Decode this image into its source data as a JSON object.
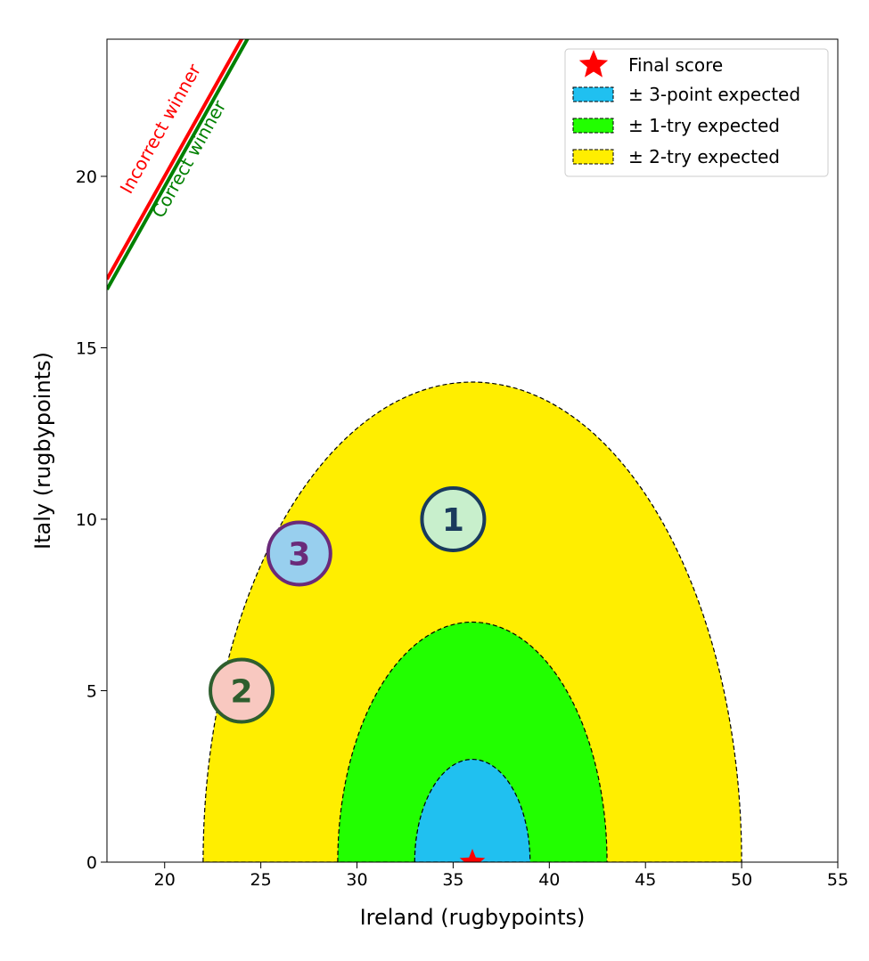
{
  "chart_data": {
    "type": "scatter",
    "xlabel": "Ireland (rugbypoints)",
    "ylabel": "Italy (rugbypoints)",
    "xlim": [
      17,
      55
    ],
    "ylim": [
      0,
      24
    ],
    "x_ticks": [
      20,
      25,
      30,
      35,
      40,
      45,
      50,
      55
    ],
    "y_ticks": [
      0,
      5,
      10,
      15,
      20
    ],
    "grid": false,
    "legend_position": "top-right",
    "final_score": {
      "label": "Final score",
      "x": 36,
      "y": 0,
      "color": "#ff0000"
    },
    "regions": [
      {
        "label": "± 2-try expected",
        "center": [
          36,
          0
        ],
        "x_radius": 14,
        "y_radius": 14,
        "color": "#ffee00"
      },
      {
        "label": "± 1-try expected",
        "center": [
          36,
          0
        ],
        "x_radius": 7,
        "y_radius": 7,
        "color": "#22ff00"
      },
      {
        "label": "± 3-point expected",
        "center": [
          36,
          0
        ],
        "x_radius": 3,
        "y_radius": 3,
        "color": "#20c0f0"
      }
    ],
    "legend": [
      {
        "label": "Final score",
        "kind": "star",
        "color": "#ff0000"
      },
      {
        "label": "± 3-point expected",
        "kind": "patch",
        "color": "#20c0f0"
      },
      {
        "label": "± 1-try expected",
        "kind": "patch",
        "color": "#22ff00"
      },
      {
        "label": "± 2-try expected",
        "kind": "patch",
        "color": "#ffee00"
      }
    ],
    "lines": [
      {
        "label": "Incorrect winner",
        "color": "#ff0000",
        "intercept": 0
      },
      {
        "label": "Correct winner",
        "color": "#008000",
        "intercept": -0.3
      }
    ],
    "predictions": [
      {
        "label": "1",
        "x": 35,
        "y": 10,
        "fill": "#c8efcc",
        "edge": "#1a3a5c"
      },
      {
        "label": "2",
        "x": 24,
        "y": 5,
        "fill": "#f8c8c0",
        "edge": "#2e5e2e"
      },
      {
        "label": "3",
        "x": 27,
        "y": 9,
        "fill": "#98cfee",
        "edge": "#6a2a7a"
      }
    ]
  }
}
